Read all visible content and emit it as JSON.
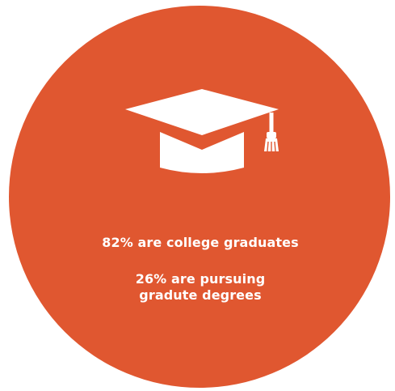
{
  "infographic": {
    "accent_color": "#e05730",
    "icon": "graduation-cap-icon",
    "stat_college": "82% are college graduates",
    "stat_pursuing_line1": "26% are pursuing",
    "stat_pursuing_line2": "gradute degrees"
  }
}
